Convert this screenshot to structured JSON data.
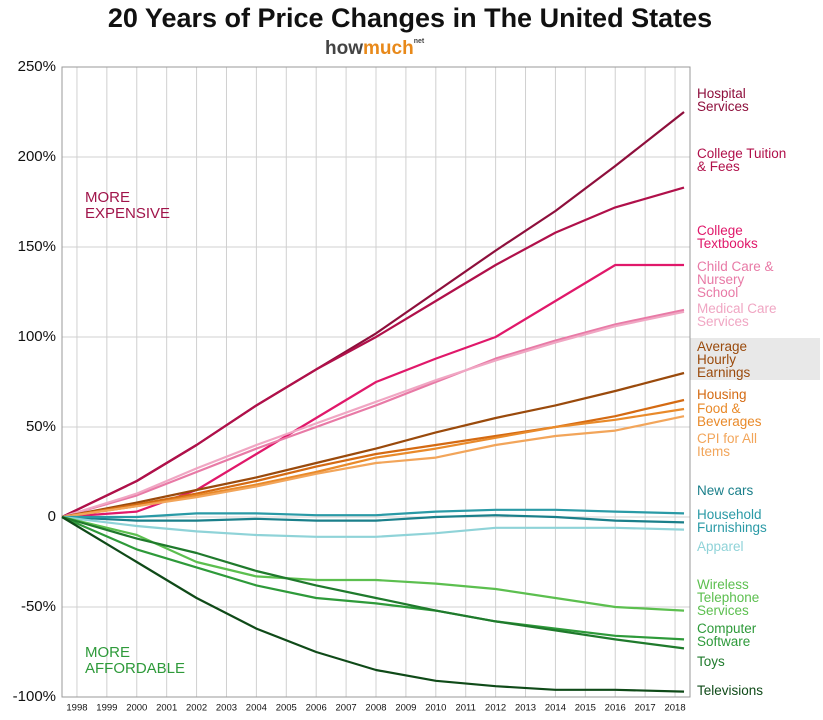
{
  "chart_data": {
    "type": "line",
    "title": "20 Years of Price Changes in The United States",
    "logo": [
      "how",
      "much",
      "net"
    ],
    "annotations": [
      "MORE EXPENSIVE",
      "MORE AFFORDABLE"
    ],
    "x": [
      1997.5,
      2000,
      2002,
      2004,
      2006,
      2008,
      2010,
      2012,
      2014,
      2016,
      2018.3
    ],
    "xlim": [
      1997.5,
      2018.5
    ],
    "xticks": [
      1998,
      1999,
      2000,
      2001,
      2002,
      2003,
      2004,
      2005,
      2006,
      2007,
      2008,
      2009,
      2010,
      2011,
      2012,
      2013,
      2014,
      2015,
      2016,
      2017,
      2018
    ],
    "ylim": [
      -100,
      250
    ],
    "yticks": [
      {
        "value": -100,
        "label": "-100%"
      },
      {
        "value": -50,
        "label": "-50%"
      },
      0,
      {
        "value": 50,
        "label": "50%"
      },
      {
        "value": 100,
        "label": "100%"
      },
      {
        "value": 150,
        "label": "150%"
      },
      {
        "value": 200,
        "label": "200%"
      },
      {
        "value": 250,
        "label": "250%"
      }
    ],
    "grid": true,
    "series": [
      {
        "name": "Hospital Services",
        "color": "#8e0f3c",
        "values": [
          0,
          20,
          40,
          62,
          82,
          102,
          125,
          148,
          170,
          195,
          225
        ]
      },
      {
        "name": "College Tuition & Fees",
        "color": "#b0104a",
        "values": [
          0,
          20,
          40,
          62,
          82,
          100,
          120,
          140,
          158,
          172,
          183
        ]
      },
      {
        "name": "College Textbooks",
        "color": "#e0186a",
        "values": [
          0,
          3,
          15,
          35,
          55,
          75,
          88,
          100,
          120,
          140,
          140
        ]
      },
      {
        "name": "Child Care & Nursery School",
        "color": "#e87aa6",
        "values": [
          0,
          12,
          25,
          38,
          50,
          62,
          75,
          88,
          98,
          107,
          115
        ]
      },
      {
        "name": "Medical Care Services",
        "color": "#f0a6c3",
        "values": [
          0,
          13,
          27,
          40,
          52,
          64,
          76,
          87,
          97,
          106,
          114
        ]
      },
      {
        "name": "Average Hourly Earnings",
        "color": "#9a4a0c",
        "values": [
          0,
          8,
          15,
          22,
          30,
          38,
          47,
          55,
          62,
          70,
          80
        ]
      },
      {
        "name": "Housing",
        "color": "#d46a12",
        "values": [
          0,
          7,
          13,
          20,
          28,
          35,
          40,
          45,
          50,
          56,
          65
        ]
      },
      {
        "name": "Food & Beverages",
        "color": "#e98a2a",
        "values": [
          0,
          6,
          12,
          18,
          25,
          33,
          38,
          44,
          50,
          54,
          60
        ]
      },
      {
        "name": "CPI for All Items",
        "color": "#f2a55a",
        "values": [
          0,
          6,
          11,
          17,
          24,
          30,
          33,
          40,
          45,
          48,
          56
        ]
      },
      {
        "name": "New cars",
        "color": "#1a7f8a",
        "values": [
          0,
          -2,
          -2,
          -1,
          -2,
          -2,
          0,
          1,
          0,
          -2,
          -3
        ]
      },
      {
        "name": "Household Furnishings",
        "color": "#2a9aa6",
        "values": [
          0,
          0,
          2,
          2,
          1,
          1,
          3,
          4,
          4,
          3,
          2
        ]
      },
      {
        "name": "Apparel",
        "color": "#8fd3d8",
        "values": [
          0,
          -5,
          -8,
          -10,
          -11,
          -11,
          -9,
          -6,
          -6,
          -6,
          -7
        ]
      },
      {
        "name": "Wireless Telephone Services",
        "color": "#5cbf4f",
        "values": [
          0,
          -10,
          -25,
          -33,
          -35,
          -35,
          -37,
          -40,
          -45,
          -50,
          -52
        ]
      },
      {
        "name": "Computer Software",
        "color": "#2e9a3a",
        "values": [
          0,
          -18,
          -28,
          -38,
          -45,
          -48,
          -52,
          -58,
          -62,
          -66,
          -68
        ]
      },
      {
        "name": "Toys",
        "color": "#1f7a2c",
        "values": [
          0,
          -12,
          -20,
          -30,
          -38,
          -45,
          -52,
          -58,
          -63,
          -68,
          -73
        ]
      },
      {
        "name": "Televisions",
        "color": "#0f4a18",
        "values": [
          0,
          -25,
          -45,
          -62,
          -75,
          -85,
          -91,
          -94,
          -96,
          -96,
          -97
        ]
      }
    ]
  }
}
